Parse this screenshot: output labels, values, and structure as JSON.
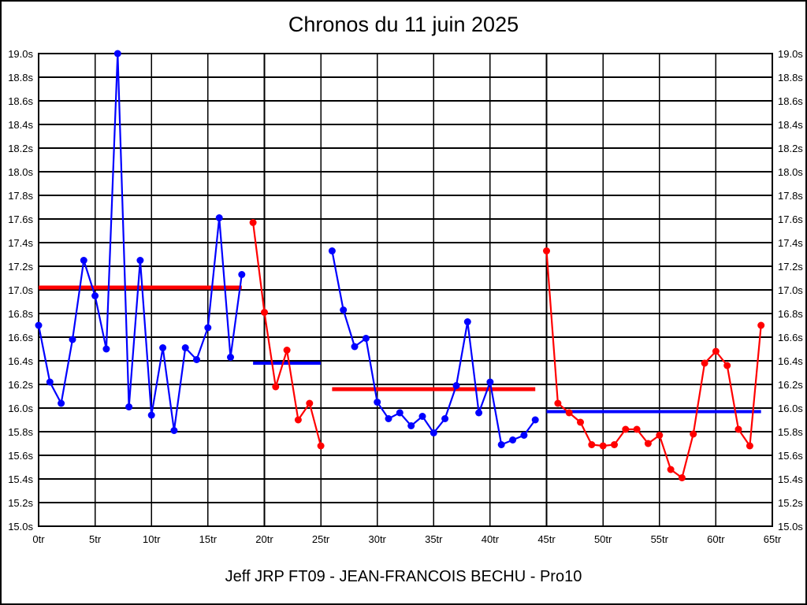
{
  "chart_data": {
    "type": "line",
    "title": "Chronos du 11 juin 2025",
    "caption": "Jeff JRP FT09 - JEAN-FRANCOIS BECHU - Pro10",
    "x_unit": "tr",
    "y_unit": "s",
    "xlim": [
      0,
      65
    ],
    "ylim": [
      15.0,
      19.0
    ],
    "grid": true,
    "legend": "none",
    "colors": {
      "blue": "#0000ff",
      "red": "#ff0000",
      "grid": "#000000",
      "text": "#000000",
      "background": "#ffffff"
    },
    "x_ticks": [
      {
        "value": 0,
        "label": "0tr"
      },
      {
        "value": 5,
        "label": "5tr"
      },
      {
        "value": 10,
        "label": "10tr"
      },
      {
        "value": 15,
        "label": "15tr"
      },
      {
        "value": 20,
        "label": "20tr"
      },
      {
        "value": 25,
        "label": "25tr"
      },
      {
        "value": 30,
        "label": "30tr"
      },
      {
        "value": 35,
        "label": "35tr"
      },
      {
        "value": 40,
        "label": "40tr"
      },
      {
        "value": 45,
        "label": "45tr"
      },
      {
        "value": 50,
        "label": "50tr"
      },
      {
        "value": 55,
        "label": "55tr"
      },
      {
        "value": 60,
        "label": "60tr"
      },
      {
        "value": 65,
        "label": "65tr"
      }
    ],
    "y_ticks": [
      {
        "value": 19.0,
        "label": "19.0s"
      },
      {
        "value": 18.8,
        "label": "18.8s"
      },
      {
        "value": 18.6,
        "label": "18.6s"
      },
      {
        "value": 18.4,
        "label": "18.4s"
      },
      {
        "value": 18.2,
        "label": "18.2s"
      },
      {
        "value": 18.0,
        "label": "18.0s"
      },
      {
        "value": 17.8,
        "label": "17.8s"
      },
      {
        "value": 17.6,
        "label": "17.6s"
      },
      {
        "value": 17.4,
        "label": "17.4s"
      },
      {
        "value": 17.2,
        "label": "17.2s"
      },
      {
        "value": 17.0,
        "label": "17.0s"
      },
      {
        "value": 16.8,
        "label": "16.8s"
      },
      {
        "value": 16.6,
        "label": "16.6s"
      },
      {
        "value": 16.4,
        "label": "16.4s"
      },
      {
        "value": 16.2,
        "label": "16.2s"
      },
      {
        "value": 16.0,
        "label": "16.0s"
      },
      {
        "value": 15.8,
        "label": "15.8s"
      },
      {
        "value": 15.6,
        "label": "15.6s"
      },
      {
        "value": 15.4,
        "label": "15.4s"
      },
      {
        "value": 15.2,
        "label": "15.2s"
      },
      {
        "value": 15.0,
        "label": "15.0s"
      }
    ],
    "series": [
      {
        "name": "stint-1-blue-laps",
        "color": "blue",
        "x_start": 0,
        "values": [
          16.7,
          16.22,
          16.04,
          16.58,
          17.25,
          16.95,
          16.5,
          19.0,
          16.01,
          17.25,
          15.94,
          16.51,
          15.81,
          16.51,
          16.41,
          16.68,
          17.61,
          16.43,
          17.13
        ]
      },
      {
        "name": "stint-2-red-laps",
        "color": "red",
        "x_start": 19,
        "values": [
          17.57,
          16.81,
          16.18,
          16.49,
          15.9,
          16.04,
          15.68
        ]
      },
      {
        "name": "stint-3-blue-laps",
        "color": "blue",
        "x_start": 26,
        "values": [
          17.33,
          16.83,
          16.52,
          16.59,
          16.05,
          15.91,
          15.96,
          15.85,
          15.93,
          15.79,
          15.91,
          16.19,
          16.73,
          15.96,
          16.22,
          15.69,
          15.73,
          15.77,
          15.9
        ]
      },
      {
        "name": "stint-4-red-laps",
        "color": "red",
        "x_start": 45,
        "values": [
          17.33,
          16.04,
          15.96,
          15.88,
          15.69,
          15.68,
          15.69,
          15.82,
          15.82,
          15.7,
          15.77,
          15.48,
          15.41,
          15.78,
          16.38,
          16.48,
          16.36,
          15.82,
          15.68,
          16.7
        ]
      }
    ],
    "reference_lines": [
      {
        "name": "average-line-stint-1",
        "color": "red",
        "y": 17.02,
        "x_start": 0,
        "x_end": 18
      },
      {
        "name": "average-line-stint-2",
        "color": "blue",
        "y": 16.38,
        "x_start": 19,
        "x_end": 25
      },
      {
        "name": "average-line-stint-3",
        "color": "red",
        "y": 16.16,
        "x_start": 26,
        "x_end": 44
      },
      {
        "name": "average-line-stint-4",
        "color": "blue",
        "y": 15.97,
        "x_start": 45,
        "x_end": 64
      }
    ]
  }
}
